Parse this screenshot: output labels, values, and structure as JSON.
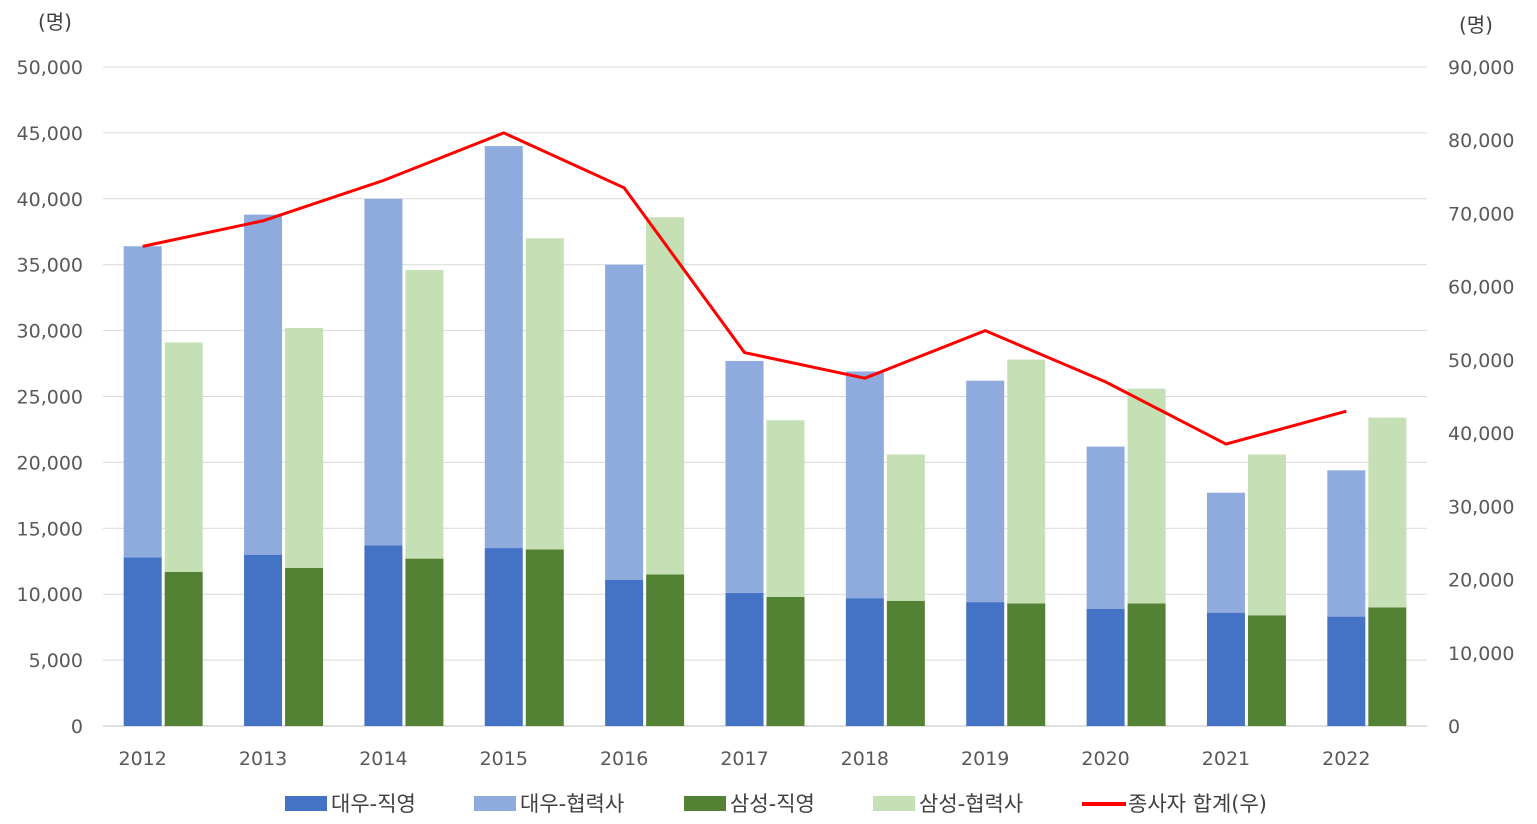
{
  "chart_data": {
    "type": "bar",
    "stacked": true,
    "categories": [
      "2012",
      "2013",
      "2014",
      "2015",
      "2016",
      "2017",
      "2018",
      "2019",
      "2020",
      "2021",
      "2022"
    ],
    "groups": [
      "대우",
      "삼성"
    ],
    "series": [
      {
        "name": "대우-직영",
        "group": "대우",
        "color": "#4472C4",
        "values": [
          12800,
          13000,
          13700,
          13500,
          11100,
          10100,
          9700,
          9400,
          8900,
          8600,
          8300
        ]
      },
      {
        "name": "대우-협력사",
        "group": "대우",
        "color": "#8FAADC",
        "values": [
          23600,
          25800,
          26300,
          30500,
          23900,
          17600,
          17200,
          16800,
          12300,
          9100,
          11100
        ]
      },
      {
        "name": "삼성-직영",
        "group": "삼성",
        "color": "#548235",
        "values": [
          11700,
          12000,
          12700,
          13400,
          11500,
          9800,
          9500,
          9300,
          9300,
          8400,
          9000
        ]
      },
      {
        "name": "삼성-협력사",
        "group": "삼성",
        "color": "#C5E0B4",
        "values": [
          17400,
          18200,
          21900,
          23600,
          27100,
          13400,
          11100,
          18500,
          16300,
          12200,
          14400
        ]
      }
    ],
    "line_series": {
      "name": "종사자 합계(우)",
      "axis": "right",
      "color": "#FF0000",
      "values": [
        65500,
        69000,
        74500,
        81000,
        73500,
        51000,
        47500,
        54000,
        47000,
        38500,
        43000
      ]
    },
    "y_left": {
      "unit": "(명)",
      "min": 0,
      "max": 50000,
      "step": 5000,
      "tick_labels": [
        "0",
        "5,000",
        "10,000",
        "15,000",
        "20,000",
        "25,000",
        "30,000",
        "35,000",
        "40,000",
        "45,000",
        "50,000"
      ]
    },
    "y_right": {
      "unit": "(명)",
      "min": 0,
      "max": 90000,
      "step": 10000,
      "tick_labels": [
        "0",
        "10,000",
        "20,000",
        "30,000",
        "40,000",
        "50,000",
        "60,000",
        "70,000",
        "80,000",
        "90,000"
      ]
    },
    "grid": true,
    "legend": {
      "position": "bottom",
      "items": [
        "대우-직영",
        "대우-협력사",
        "삼성-직영",
        "삼성-협력사",
        "종사자 합계(우)"
      ]
    }
  }
}
